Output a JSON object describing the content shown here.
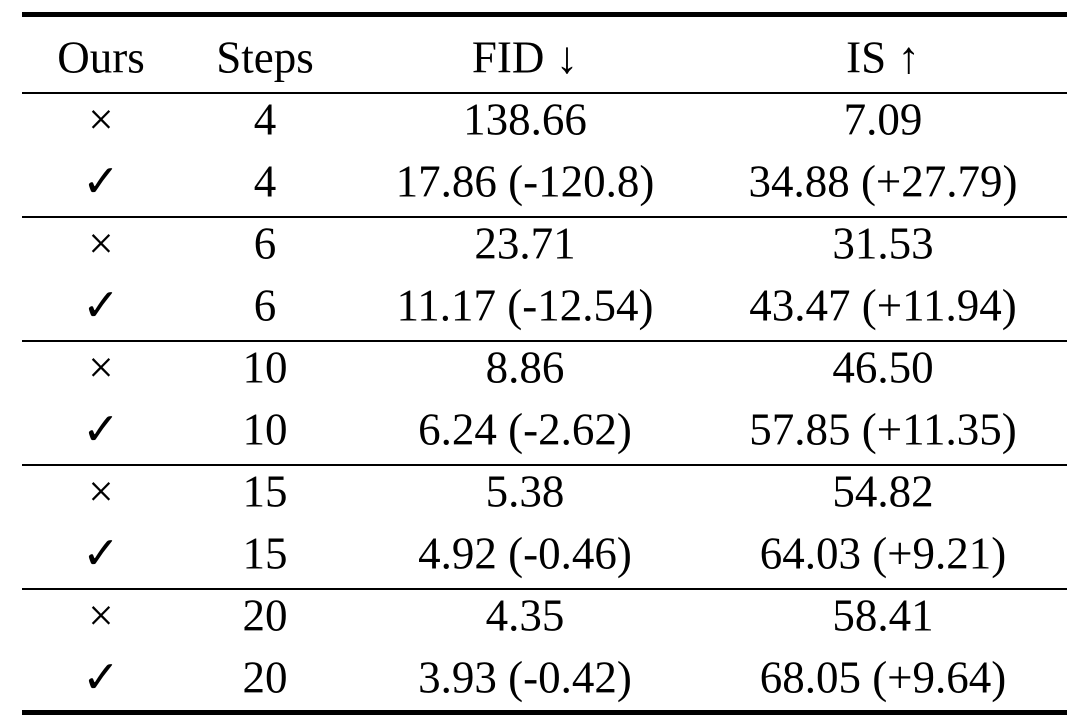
{
  "table": {
    "header": [
      "Ours",
      "Steps",
      "FID ↓",
      "IS ↑"
    ],
    "rows": [
      [
        "×",
        "4",
        "138.66",
        "7.09"
      ],
      [
        "✓",
        "4",
        "17.86 (-120.8)",
        "34.88 (+27.79)"
      ],
      [
        "×",
        "6",
        "23.71",
        "31.53"
      ],
      [
        "✓",
        "6",
        "11.17 (-12.54)",
        "43.47 (+11.94)"
      ],
      [
        "×",
        "10",
        "8.86",
        "46.50"
      ],
      [
        "✓",
        "10",
        "6.24 (-2.62)",
        "57.85 (+11.35)"
      ],
      [
        "×",
        "15",
        "5.38",
        "54.82"
      ],
      [
        "✓",
        "15",
        "4.92 (-0.46)",
        "64.03 (+9.21)"
      ],
      [
        "×",
        "20",
        "4.35",
        "58.41"
      ],
      [
        "✓",
        "20",
        "3.93 (-0.42)",
        "68.05 (+9.64)"
      ]
    ]
  }
}
